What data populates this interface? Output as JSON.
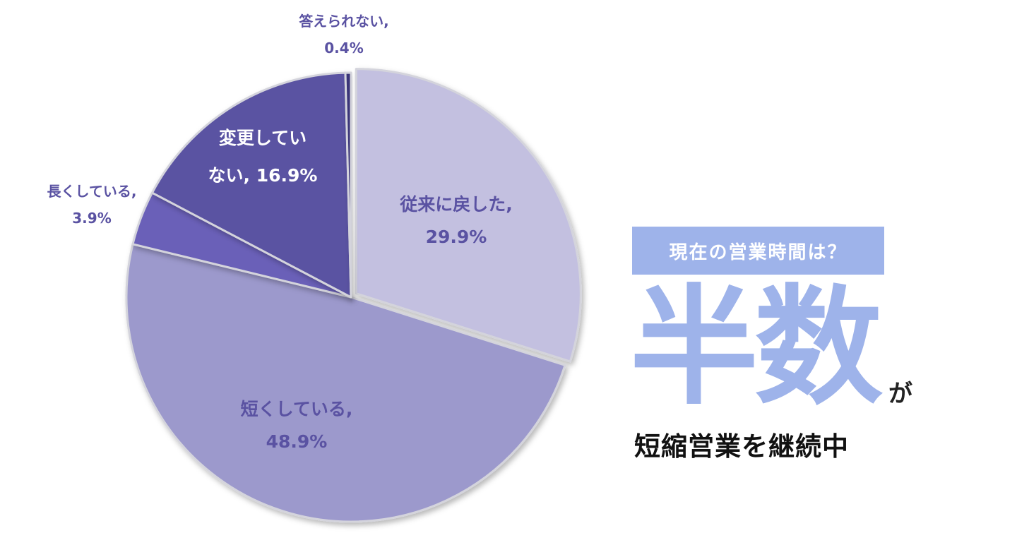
{
  "chart_data": {
    "type": "pie",
    "categories": [
      "従来に戻した",
      "短くしている",
      "長くしている",
      "変更していない",
      "答えられない"
    ],
    "values": [
      29.9,
      48.9,
      3.9,
      16.9,
      0.4
    ],
    "labels": [
      [
        "従来に戻した,",
        "29.9%"
      ],
      [
        "短くしている,",
        "48.9%"
      ],
      [
        "長くしている,",
        "3.9%"
      ],
      [
        "変更してい",
        "ない, 16.9%"
      ],
      [
        "答えられない,",
        "0.4%"
      ]
    ],
    "colors": [
      "#c3c0e0",
      "#9c99cc",
      "#6a60b8",
      "#5a52a2",
      "#3a3578"
    ],
    "label_colors": [
      "#5a52a2",
      "#5a52a2",
      "#5a52a2",
      "#ffffff",
      "#5a52a2"
    ],
    "exploded_slice": "従来に戻した",
    "start": "12 o'clock",
    "direction": "clockwise"
  },
  "headline": {
    "box_text": "現在の営業時間は？",
    "big_text": "半数",
    "big_suffix": "が",
    "sub_text": "短縮営業を継続中"
  }
}
